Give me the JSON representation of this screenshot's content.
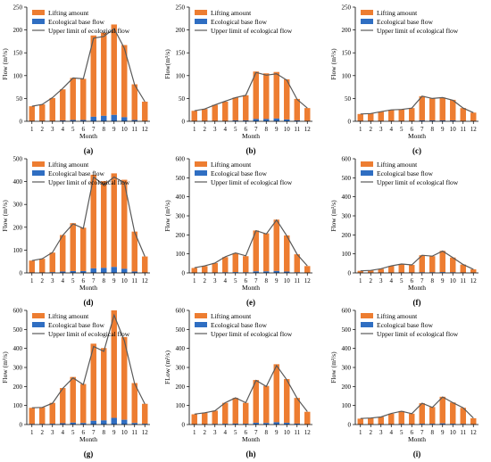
{
  "legend": {
    "lifting": "Lifting amount",
    "base": "Ecological base flow",
    "upper": "Upper limit of ecological flow"
  },
  "colors": {
    "lifting": "#ed7d31",
    "base": "#2f6ec2",
    "upper": "#595959",
    "axis": "#000000"
  },
  "chart_data": [
    {
      "type": "bar",
      "label": "(a)",
      "ylabel": "Flow (m³/s)",
      "xlabel": "Month",
      "categories": [
        "1",
        "2",
        "3",
        "4",
        "5",
        "6",
        "7",
        "8",
        "9",
        "10",
        "11",
        "12"
      ],
      "ylim": [
        0,
        250
      ],
      "yticks": [
        0,
        50,
        100,
        150,
        200,
        250
      ],
      "series": [
        {
          "name": "Lifting amount",
          "values": [
            32,
            36,
            50,
            68,
            92,
            90,
            178,
            182,
            198,
            158,
            78,
            42
          ]
        },
        {
          "name": "Ecological base flow",
          "values": [
            1,
            1,
            1,
            2,
            3,
            3,
            10,
            12,
            14,
            9,
            3,
            1
          ]
        },
        {
          "name": "Upper limit of ecological flow",
          "values": [
            33,
            37,
            52,
            72,
            95,
            93,
            182,
            186,
            203,
            160,
            80,
            43
          ]
        }
      ]
    },
    {
      "type": "bar",
      "label": "(b)",
      "ylabel": "Flow(m³/s)",
      "xlabel": "Month",
      "categories": [
        "1",
        "2",
        "3",
        "4",
        "5",
        "6",
        "7",
        "8",
        "9",
        "10",
        "11",
        "12"
      ],
      "ylim": [
        0,
        250
      ],
      "yticks": [
        0,
        50,
        100,
        150,
        200,
        250
      ],
      "series": [
        {
          "name": "Lifting amount",
          "values": [
            22,
            26,
            35,
            42,
            50,
            55,
            104,
            100,
            102,
            88,
            47,
            28
          ]
        },
        {
          "name": "Ecological base flow",
          "values": [
            1,
            1,
            1,
            1,
            2,
            2,
            5,
            5,
            6,
            4,
            2,
            1
          ]
        },
        {
          "name": "Upper limit of ecological flow",
          "values": [
            23,
            27,
            36,
            44,
            52,
            57,
            107,
            101,
            104,
            90,
            48,
            29
          ]
        }
      ]
    },
    {
      "type": "bar",
      "label": "(c)",
      "ylabel": "Flow (m³/s)",
      "xlabel": "Month",
      "categories": [
        "1",
        "2",
        "3",
        "4",
        "5",
        "6",
        "7",
        "8",
        "9",
        "10",
        "11",
        "12"
      ],
      "ylim": [
        0,
        250
      ],
      "yticks": [
        0,
        50,
        100,
        150,
        200,
        250
      ],
      "series": [
        {
          "name": "Lifting amount",
          "values": [
            15,
            16,
            20,
            24,
            25,
            28,
            53,
            48,
            50,
            45,
            28,
            18
          ]
        },
        {
          "name": "Ecological base flow",
          "values": [
            1,
            1,
            1,
            1,
            1,
            1,
            2,
            2,
            2,
            2,
            1,
            1
          ]
        },
        {
          "name": "Upper limit of ecological flow",
          "values": [
            16,
            17,
            21,
            25,
            26,
            29,
            55,
            50,
            52,
            46,
            29,
            19
          ]
        }
      ]
    },
    {
      "type": "bar",
      "label": "(d)",
      "ylabel": "Flow (m³/s)",
      "xlabel": "Month",
      "categories": [
        "1",
        "2",
        "3",
        "4",
        "5",
        "6",
        "7",
        "8",
        "9",
        "10",
        "11",
        "12"
      ],
      "ylim": [
        0,
        500
      ],
      "yticks": [
        0,
        100,
        200,
        300,
        400,
        500
      ],
      "series": [
        {
          "name": "Lifting amount",
          "values": [
            52,
            60,
            86,
            160,
            210,
            190,
            410,
            380,
            410,
            390,
            175,
            70
          ]
        },
        {
          "name": "Ecological base flow",
          "values": [
            2,
            2,
            3,
            6,
            8,
            8,
            20,
            22,
            26,
            18,
            6,
            2
          ]
        },
        {
          "name": "Upper limit of ecological flow",
          "values": [
            54,
            62,
            90,
            165,
            215,
            195,
            420,
            385,
            420,
            395,
            178,
            72
          ]
        }
      ]
    },
    {
      "type": "bar",
      "label": "(e)",
      "ylabel": "Flow (m³/s)",
      "xlabel": "Month",
      "categories": [
        "1",
        "2",
        "3",
        "4",
        "5",
        "6",
        "7",
        "8",
        "9",
        "10",
        "11",
        "12"
      ],
      "ylim": [
        0,
        600
      ],
      "yticks": [
        0,
        100,
        200,
        300,
        400,
        500,
        600
      ],
      "series": [
        {
          "name": "Lifting amount",
          "values": [
            25,
            35,
            50,
            80,
            100,
            85,
            215,
            200,
            270,
            190,
            95,
            35
          ]
        },
        {
          "name": "Ecological base flow",
          "values": [
            1,
            1,
            2,
            3,
            4,
            3,
            8,
            8,
            10,
            7,
            3,
            1
          ]
        },
        {
          "name": "Upper limit of ecological flow",
          "values": [
            27,
            37,
            52,
            85,
            105,
            90,
            222,
            205,
            278,
            195,
            98,
            37
          ]
        }
      ]
    },
    {
      "type": "bar",
      "label": "(f)",
      "ylabel": "Flow (m³/s)",
      "xlabel": "Month",
      "categories": [
        "1",
        "2",
        "3",
        "4",
        "5",
        "6",
        "7",
        "8",
        "9",
        "10",
        "11",
        "12"
      ],
      "ylim": [
        0,
        600
      ],
      "yticks": [
        0,
        100,
        200,
        300,
        400,
        500,
        600
      ],
      "series": [
        {
          "name": "Lifting amount",
          "values": [
            10,
            12,
            20,
            35,
            45,
            40,
            90,
            85,
            112,
            78,
            42,
            18
          ]
        },
        {
          "name": "Ecological base flow",
          "values": [
            1,
            1,
            1,
            1,
            2,
            2,
            3,
            3,
            4,
            3,
            2,
            1
          ]
        },
        {
          "name": "Upper limit of ecological flow",
          "values": [
            11,
            13,
            22,
            37,
            47,
            42,
            93,
            88,
            115,
            80,
            44,
            19
          ]
        }
      ]
    },
    {
      "type": "bar",
      "label": "(g)",
      "ylabel": "Flow (m³/s)",
      "xlabel": "Month",
      "categories": [
        "1",
        "2",
        "3",
        "4",
        "5",
        "6",
        "7",
        "8",
        "9",
        "10",
        "11",
        "12"
      ],
      "ylim": [
        0,
        600
      ],
      "yticks": [
        0,
        100,
        200,
        300,
        400,
        500,
        600
      ],
      "series": [
        {
          "name": "Lifting amount",
          "values": [
            85,
            88,
            110,
            185,
            240,
            205,
            405,
            380,
            565,
            435,
            210,
            105
          ]
        },
        {
          "name": "Ecological base flow",
          "values": [
            3,
            3,
            4,
            7,
            10,
            8,
            20,
            22,
            35,
            25,
            8,
            4
          ]
        },
        {
          "name": "Upper limit of ecological flow",
          "values": [
            88,
            90,
            112,
            190,
            245,
            210,
            410,
            385,
            575,
            440,
            215,
            108
          ]
        }
      ]
    },
    {
      "type": "bar",
      "label": "(h)",
      "ylabel": "FLow (m³/s)",
      "xlabel": "Month",
      "categories": [
        "1",
        "2",
        "3",
        "4",
        "5",
        "6",
        "7",
        "8",
        "9",
        "10",
        "11",
        "12"
      ],
      "ylim": [
        0,
        600
      ],
      "yticks": [
        0,
        100,
        200,
        300,
        400,
        500,
        600
      ],
      "series": [
        {
          "name": "Lifting amount",
          "values": [
            52,
            60,
            70,
            110,
            135,
            110,
            225,
            195,
            305,
            230,
            135,
            65
          ]
        },
        {
          "name": "Ecological base flow",
          "values": [
            2,
            2,
            3,
            4,
            5,
            4,
            9,
            8,
            12,
            9,
            5,
            2
          ]
        },
        {
          "name": "Upper limit of ecological flow",
          "values": [
            55,
            62,
            72,
            115,
            140,
            115,
            232,
            200,
            310,
            235,
            138,
            68
          ]
        }
      ]
    },
    {
      "type": "bar",
      "label": "(i)",
      "ylabel": "Flow (m³/s)",
      "xlabel": "Month",
      "categories": [
        "1",
        "2",
        "3",
        "4",
        "5",
        "6",
        "7",
        "8",
        "9",
        "10",
        "11",
        "12"
      ],
      "ylim": [
        0,
        600
      ],
      "yticks": [
        0,
        100,
        200,
        300,
        400,
        500,
        600
      ],
      "series": [
        {
          "name": "Lifting amount",
          "values": [
            30,
            32,
            38,
            55,
            68,
            55,
            108,
            88,
            140,
            112,
            85,
            32
          ]
        },
        {
          "name": "Ecological base flow",
          "values": [
            1,
            1,
            2,
            2,
            3,
            2,
            4,
            4,
            6,
            4,
            3,
            1
          ]
        },
        {
          "name": "Upper limit of ecological flow",
          "values": [
            32,
            34,
            40,
            58,
            70,
            57,
            112,
            90,
            145,
            115,
            88,
            34
          ]
        }
      ]
    }
  ]
}
